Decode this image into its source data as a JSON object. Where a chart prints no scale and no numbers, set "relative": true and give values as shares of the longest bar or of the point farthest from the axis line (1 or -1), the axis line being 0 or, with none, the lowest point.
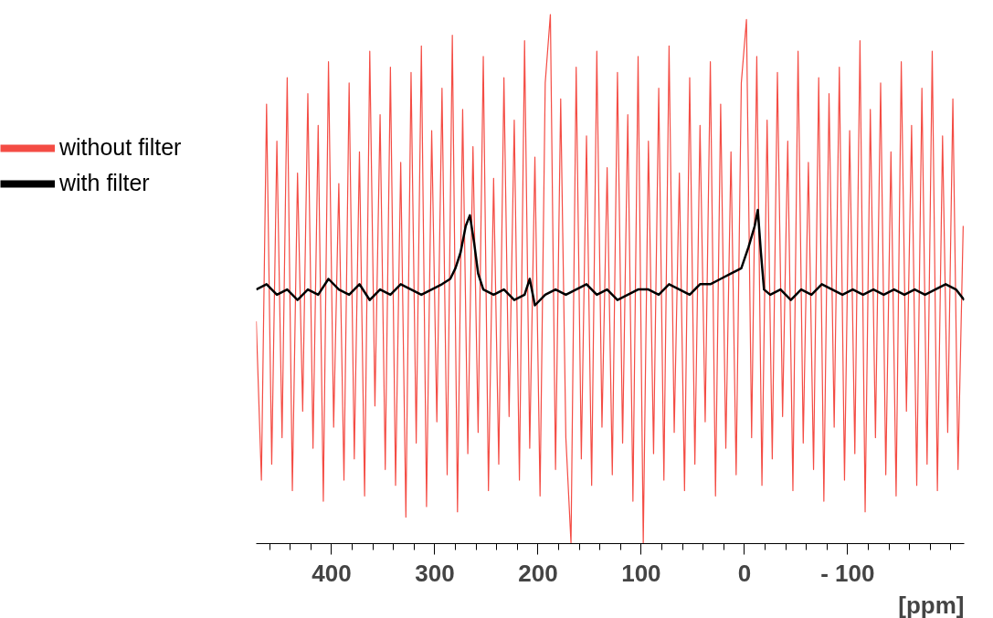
{
  "chart_data": {
    "type": "line",
    "relative": true,
    "xlabel": "[ppm]",
    "legend": "left",
    "grid": false,
    "tick_labels": "x",
    "xlim": [
      473,
      -213
    ],
    "xticks": [
      {
        "value": 460,
        "label": null
      },
      {
        "value": 440,
        "label": null
      },
      {
        "value": 420,
        "label": null
      },
      400,
      {
        "value": 380,
        "label": null
      },
      {
        "value": 360,
        "label": null
      },
      {
        "value": 340,
        "label": null
      },
      {
        "value": 320,
        "label": null
      },
      300,
      {
        "value": 280,
        "label": null
      },
      {
        "value": 260,
        "label": null
      },
      {
        "value": 240,
        "label": null
      },
      {
        "value": 220,
        "label": null
      },
      200,
      {
        "value": 180,
        "label": null
      },
      {
        "value": 160,
        "label": null
      },
      {
        "value": 140,
        "label": null
      },
      {
        "value": 120,
        "label": null
      },
      100,
      {
        "value": 80,
        "label": null
      },
      {
        "value": 60,
        "label": null
      },
      {
        "value": 40,
        "label": null
      },
      {
        "value": 20,
        "label": null
      },
      0,
      {
        "value": -20,
        "label": null
      },
      {
        "value": -40,
        "label": null
      },
      {
        "value": -60,
        "label": null
      },
      {
        "value": -80,
        "label": null
      },
      {
        "value": -100,
        "label": "- 100"
      },
      {
        "value": -120,
        "label": null
      },
      {
        "value": -140,
        "label": null
      },
      {
        "value": -160,
        "label": null
      },
      {
        "value": -180,
        "label": null
      },
      {
        "value": -200,
        "label": null
      }
    ],
    "series": [
      {
        "name": "without filter",
        "color": "#f44c44",
        "x": [
          473,
          468,
          463,
          458,
          453,
          448,
          443,
          438,
          433,
          428,
          423,
          418,
          413,
          408,
          403,
          398,
          393,
          388,
          383,
          378,
          373,
          368,
          363,
          358,
          353,
          348,
          343,
          338,
          333,
          328,
          323,
          318,
          313,
          308,
          303,
          298,
          293,
          288,
          283,
          278,
          273,
          268,
          263,
          258,
          253,
          248,
          243,
          238,
          233,
          228,
          223,
          218,
          213,
          208,
          203,
          198,
          193,
          188,
          183,
          178,
          173,
          168,
          163,
          158,
          153,
          148,
          143,
          138,
          133,
          128,
          123,
          118,
          113,
          108,
          103,
          98,
          93,
          88,
          83,
          78,
          73,
          68,
          63,
          58,
          53,
          48,
          43,
          38,
          33,
          28,
          23,
          18,
          13,
          8,
          3,
          -2,
          -7,
          -12,
          -17,
          -22,
          -27,
          -32,
          -37,
          -42,
          -47,
          -52,
          -57,
          -62,
          -67,
          -72,
          -77,
          -82,
          -87,
          -92,
          -97,
          -102,
          -107,
          -112,
          -117,
          -122,
          -127,
          -132,
          -137,
          -142,
          -147,
          -152,
          -157,
          -162,
          -167,
          -172,
          -177,
          -182,
          -187,
          -192,
          -197,
          -202,
          -207,
          -212
        ],
        "values": [
          0.42,
          0.12,
          0.83,
          0.15,
          0.76,
          0.2,
          0.88,
          0.1,
          0.7,
          0.25,
          0.85,
          0.18,
          0.79,
          0.08,
          0.91,
          0.22,
          0.68,
          0.12,
          0.87,
          0.16,
          0.74,
          0.09,
          0.93,
          0.26,
          0.81,
          0.14,
          0.9,
          0.11,
          0.72,
          0.05,
          0.89,
          0.19,
          0.94,
          0.07,
          0.78,
          0.23,
          0.86,
          0.13,
          0.96,
          0.06,
          0.82,
          0.17,
          0.75,
          0.21,
          0.92,
          0.1,
          0.69,
          0.15,
          0.88,
          0.24,
          0.8,
          0.12,
          0.95,
          0.18,
          0.73,
          0.09,
          0.87,
          1.0,
          0.14,
          0.84,
          0.2,
          0.0,
          0.9,
          0.16,
          0.77,
          0.11,
          0.93,
          0.22,
          0.71,
          0.13,
          0.89,
          0.19,
          0.81,
          0.08,
          0.92,
          0.0,
          0.76,
          0.17,
          0.86,
          0.12,
          0.94,
          0.21,
          0.7,
          0.1,
          0.88,
          0.15,
          0.79,
          0.23,
          0.91,
          0.09,
          0.83,
          0.18,
          0.74,
          0.13,
          0.87,
          0.99,
          0.2,
          0.92,
          0.11,
          0.8,
          0.16,
          0.89,
          0.24,
          0.76,
          0.1,
          0.93,
          0.19,
          0.72,
          0.14,
          0.88,
          0.08,
          0.85,
          0.22,
          0.9,
          0.12,
          0.78,
          0.17,
          0.95,
          0.06,
          0.82,
          0.2,
          0.87,
          0.13,
          0.74,
          0.09,
          0.91,
          0.25,
          0.79,
          0.11,
          0.86,
          0.15,
          0.93,
          0.1,
          0.77,
          0.21,
          0.84,
          0.14,
          0.6
        ]
      },
      {
        "name": "with filter",
        "color": "#000000",
        "x": [
          473,
          463,
          453,
          443,
          433,
          423,
          413,
          403,
          393,
          383,
          373,
          363,
          353,
          343,
          333,
          323,
          313,
          303,
          293,
          285,
          280,
          275,
          270,
          266,
          262,
          258,
          253,
          243,
          233,
          223,
          213,
          208,
          203,
          193,
          183,
          173,
          163,
          153,
          143,
          133,
          123,
          113,
          103,
          93,
          83,
          73,
          63,
          53,
          43,
          33,
          23,
          13,
          3,
          -4,
          -10,
          -13,
          -16,
          -19,
          -25,
          -35,
          -45,
          -55,
          -65,
          -75,
          -85,
          -95,
          -105,
          -115,
          -125,
          -135,
          -145,
          -155,
          -165,
          -175,
          -185,
          -195,
          -205,
          -213
        ],
        "values": [
          0.48,
          0.49,
          0.47,
          0.48,
          0.46,
          0.48,
          0.47,
          0.5,
          0.48,
          0.47,
          0.49,
          0.46,
          0.48,
          0.47,
          0.49,
          0.48,
          0.47,
          0.48,
          0.49,
          0.5,
          0.52,
          0.55,
          0.6,
          0.62,
          0.57,
          0.51,
          0.48,
          0.47,
          0.48,
          0.46,
          0.47,
          0.5,
          0.45,
          0.47,
          0.48,
          0.47,
          0.48,
          0.49,
          0.47,
          0.48,
          0.46,
          0.47,
          0.48,
          0.48,
          0.47,
          0.49,
          0.48,
          0.47,
          0.49,
          0.49,
          0.5,
          0.51,
          0.52,
          0.56,
          0.6,
          0.63,
          0.55,
          0.48,
          0.47,
          0.48,
          0.46,
          0.48,
          0.47,
          0.49,
          0.48,
          0.47,
          0.48,
          0.47,
          0.48,
          0.47,
          0.48,
          0.47,
          0.48,
          0.47,
          0.48,
          0.49,
          0.48,
          0.46
        ]
      }
    ]
  }
}
